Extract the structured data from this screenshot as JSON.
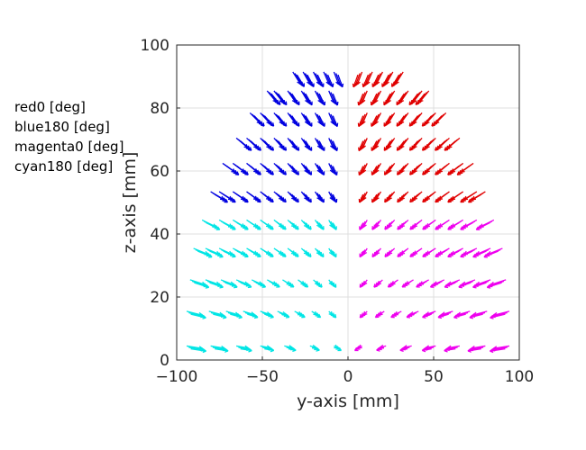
{
  "chart_data": {
    "type": "quiver",
    "title": "",
    "xlabel": "y-axis [mm]",
    "ylabel": "z-axis [mm]",
    "xlim": [
      -100,
      100
    ],
    "ylim": [
      0,
      100
    ],
    "xticks": [
      -100,
      -50,
      0,
      50,
      100
    ],
    "yticks": [
      0,
      20,
      40,
      60,
      80,
      100
    ],
    "grid": true,
    "legend_position": "left",
    "legend": [
      {
        "name": "red0 [deg]",
        "color": "#e00000"
      },
      {
        "name": "blue180 [deg]",
        "color": "#0000e0"
      },
      {
        "name": "magenta0 [deg]",
        "color": "#ee00ee"
      },
      {
        "name": "cyan180 [deg]",
        "color": "#00e5e5"
      }
    ],
    "rows": [
      {
        "z": 4,
        "ys": [
          7,
          21,
          36,
          50,
          64,
          79,
          93
        ],
        "series": [
          "magenta",
          "cyan"
        ]
      },
      {
        "z": 15,
        "ys": [
          10,
          20,
          30,
          40,
          50,
          60,
          70,
          80,
          93
        ],
        "series": [
          "magenta",
          "cyan"
        ]
      },
      {
        "z": 25,
        "ys": [
          10,
          19,
          28,
          37,
          46,
          55,
          64,
          73,
          82,
          91
        ],
        "series": [
          "magenta",
          "cyan"
        ]
      },
      {
        "z": 35,
        "ys": [
          10,
          18,
          26,
          34,
          42,
          50,
          58,
          66,
          74,
          82,
          89
        ],
        "series": [
          "magenta",
          "cyan"
        ]
      },
      {
        "z": 44,
        "ys": [
          10,
          18,
          26,
          34,
          42,
          50,
          58,
          66,
          74,
          84
        ],
        "series": [
          "magenta",
          "cyan"
        ]
      },
      {
        "z": 53,
        "ys": [
          10,
          18,
          26,
          34,
          42,
          50,
          58,
          66,
          74,
          79
        ],
        "series": [
          "red",
          "blue"
        ]
      },
      {
        "z": 62,
        "ys": [
          10,
          18,
          26,
          34,
          42,
          50,
          58,
          66,
          72
        ],
        "series": [
          "red",
          "blue"
        ]
      },
      {
        "z": 70,
        "ys": [
          10,
          18,
          26,
          34,
          42,
          50,
          58,
          64
        ],
        "series": [
          "red",
          "blue"
        ]
      },
      {
        "z": 78,
        "ys": [
          10,
          18,
          26,
          34,
          42,
          50,
          56
        ],
        "series": [
          "red",
          "blue"
        ]
      },
      {
        "z": 85,
        "ys": [
          10,
          18,
          26,
          34,
          42,
          46
        ],
        "series": [
          "red",
          "blue"
        ]
      },
      {
        "z": 91,
        "ys": [
          7,
          13,
          19,
          25,
          31
        ],
        "series": [
          "red",
          "blue"
        ]
      }
    ],
    "series_colors": {
      "red": "#e00000",
      "blue": "#0000e0",
      "magenta": "#ee00ee",
      "cyan": "#00e5e5"
    }
  }
}
